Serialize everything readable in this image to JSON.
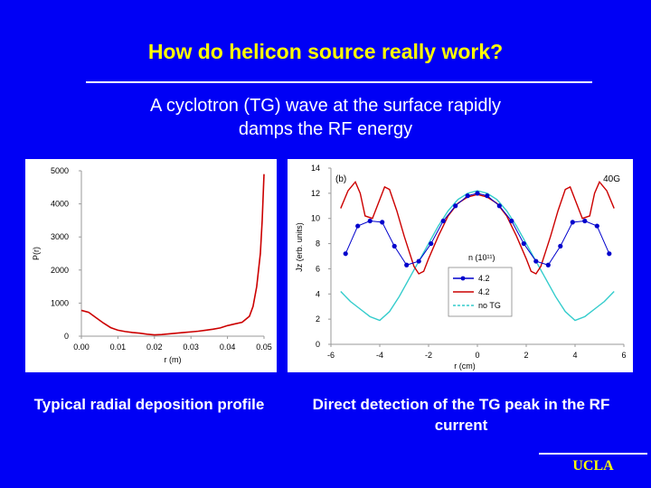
{
  "header": {
    "title": "How do helicon source really work?",
    "subtitle_line1": "A cyclotron (TG) wave at the surface rapidly",
    "subtitle_line2": "damps the RF energy"
  },
  "captions": {
    "left": "Typical radial deposition profile",
    "right": "Direct detection of the TG peak in the RF current"
  },
  "footer": {
    "logo": "UCLA"
  },
  "colors": {
    "background": "#0000f5",
    "title": "#ffff00",
    "red": "#cc0000",
    "blue": "#0000cc",
    "cyan": "#33cccc"
  },
  "chart_data": [
    {
      "type": "line",
      "xlabel": "r (m)",
      "ylabel": "P(r)",
      "xlim": [
        0,
        0.05
      ],
      "ylim": [
        0,
        5000
      ],
      "xticks": [
        "0.00",
        "0.01",
        "0.02",
        "0.03",
        "0.04",
        "0.05"
      ],
      "yticks": [
        "0",
        "1000",
        "2000",
        "3000",
        "4000",
        "5000"
      ],
      "series": [
        {
          "color": "#cc0000",
          "x": [
            0.0,
            0.002,
            0.004,
            0.006,
            0.008,
            0.01,
            0.012,
            0.014,
            0.016,
            0.018,
            0.02,
            0.022,
            0.024,
            0.026,
            0.028,
            0.03,
            0.032,
            0.034,
            0.036,
            0.038,
            0.04,
            0.042,
            0.044,
            0.046,
            0.047,
            0.048,
            0.049,
            0.0495,
            0.05
          ],
          "y": [
            780,
            720,
            560,
            400,
            260,
            180,
            140,
            110,
            90,
            60,
            40,
            50,
            70,
            90,
            110,
            130,
            150,
            180,
            210,
            250,
            320,
            370,
            420,
            600,
            900,
            1500,
            2500,
            3500,
            4900
          ]
        }
      ]
    },
    {
      "type": "line",
      "annotation": "(b)",
      "annotation_right": "40G",
      "xlabel": "r (cm)",
      "ylabel": "Jz (erb. units)",
      "xlim": [
        -6,
        6
      ],
      "ylim": [
        0,
        14
      ],
      "xticks": [
        "-6",
        "-4",
        "-2",
        "0",
        "2",
        "4",
        "6"
      ],
      "yticks": [
        "0",
        "2",
        "4",
        "6",
        "8",
        "10",
        "12",
        "14"
      ],
      "legend": {
        "title": "n (10¹¹)",
        "placement": "center-right"
      },
      "series": [
        {
          "name": "4.2",
          "color": "#0000cc",
          "marker": "circle",
          "x": [
            -5.4,
            -4.9,
            -4.4,
            -3.9,
            -3.4,
            -2.9,
            -2.4,
            -1.9,
            -1.4,
            -0.9,
            -0.4,
            0.0,
            0.4,
            0.9,
            1.4,
            1.9,
            2.4,
            2.9,
            3.4,
            3.9,
            4.4,
            4.9,
            5.4
          ],
          "y": [
            7.2,
            9.4,
            9.8,
            9.7,
            7.8,
            6.3,
            6.6,
            8.0,
            9.8,
            11.0,
            11.8,
            12.0,
            11.8,
            11.0,
            9.8,
            8.0,
            6.6,
            6.3,
            7.8,
            9.7,
            9.8,
            9.4,
            7.2
          ]
        },
        {
          "name": "4.2",
          "color": "#cc0000",
          "x": [
            -5.6,
            -5.3,
            -5.0,
            -4.8,
            -4.6,
            -4.3,
            -4.0,
            -3.8,
            -3.6,
            -3.3,
            -3.0,
            -2.8,
            -2.6,
            -2.4,
            -2.2,
            -2.0,
            -1.6,
            -1.2,
            -0.8,
            -0.4,
            0.0,
            0.4,
            0.8,
            1.2,
            1.6,
            2.0,
            2.2,
            2.4,
            2.6,
            2.8,
            3.0,
            3.3,
            3.6,
            3.8,
            4.0,
            4.3,
            4.6,
            4.8,
            5.0,
            5.3,
            5.6
          ],
          "y": [
            10.8,
            12.2,
            12.9,
            12.0,
            10.2,
            10.0,
            11.5,
            12.5,
            12.3,
            10.6,
            8.6,
            7.4,
            6.2,
            5.6,
            5.8,
            6.8,
            8.6,
            10.2,
            11.2,
            11.7,
            11.9,
            11.7,
            11.2,
            10.2,
            8.6,
            6.8,
            5.8,
            5.6,
            6.2,
            7.4,
            8.6,
            10.6,
            12.3,
            12.5,
            11.5,
            10.0,
            10.2,
            12.0,
            12.9,
            12.2,
            10.8
          ]
        },
        {
          "name": "no TG",
          "color": "#33cccc",
          "x": [
            -5.6,
            -5.2,
            -4.8,
            -4.4,
            -4.0,
            -3.6,
            -3.2,
            -2.8,
            -2.4,
            -2.0,
            -1.6,
            -1.2,
            -0.8,
            -0.4,
            0.0,
            0.4,
            0.8,
            1.2,
            1.6,
            2.0,
            2.4,
            2.8,
            3.2,
            3.6,
            4.0,
            4.4,
            4.8,
            5.2,
            5.6
          ],
          "y": [
            4.2,
            3.4,
            2.8,
            2.2,
            1.9,
            2.6,
            3.8,
            5.2,
            6.6,
            8.0,
            9.4,
            10.6,
            11.5,
            12.0,
            12.2,
            12.0,
            11.5,
            10.6,
            9.4,
            8.0,
            6.6,
            5.2,
            3.8,
            2.6,
            1.9,
            2.2,
            2.8,
            3.4,
            4.2
          ]
        }
      ]
    }
  ]
}
